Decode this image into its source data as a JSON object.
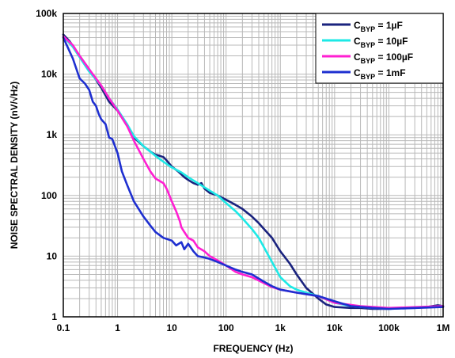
{
  "chart_data": {
    "type": "line",
    "title": "",
    "xlabel": "FREQUENCY (Hz)",
    "ylabel": "NOISE SPECTRAL DENSITY (nV/√Hz)",
    "x_scale": "log",
    "y_scale": "log",
    "xlim": [
      0.1,
      1000000
    ],
    "ylim": [
      1,
      100000
    ],
    "grid": true,
    "legend_position": "top-right",
    "x_tick_labels": [
      {
        "value": 0.1,
        "label": "0.1"
      },
      {
        "value": 1,
        "label": "1"
      },
      {
        "value": 10,
        "label": "10"
      },
      {
        "value": 100,
        "label": "100"
      },
      {
        "value": 1000,
        "label": "1k"
      },
      {
        "value": 10000,
        "label": "10k"
      },
      {
        "value": 100000,
        "label": "100k"
      },
      {
        "value": 1000000,
        "label": "1M"
      }
    ],
    "y_tick_labels": [
      {
        "value": 1,
        "label": "1"
      },
      {
        "value": 10,
        "label": "10"
      },
      {
        "value": 100,
        "label": "100"
      },
      {
        "value": 1000,
        "label": "1k"
      },
      {
        "value": 10000,
        "label": "10k"
      },
      {
        "value": 100000,
        "label": "100k"
      }
    ],
    "series": [
      {
        "name_main": "C",
        "name_sub": "BYP",
        "name_rest": " = 1µF",
        "color": "#1a237e",
        "points": [
          [
            0.1,
            45000
          ],
          [
            0.13,
            35000
          ],
          [
            0.2,
            20000
          ],
          [
            0.3,
            12000
          ],
          [
            0.5,
            6000
          ],
          [
            0.7,
            3500
          ],
          [
            1,
            2500
          ],
          [
            1.5,
            1400
          ],
          [
            2,
            900
          ],
          [
            3,
            650
          ],
          [
            4,
            530
          ],
          [
            5,
            470
          ],
          [
            6,
            450
          ],
          [
            7,
            430
          ],
          [
            8,
            380
          ],
          [
            10,
            300
          ],
          [
            13,
            250
          ],
          [
            17,
            200
          ],
          [
            20,
            180
          ],
          [
            25,
            160
          ],
          [
            30,
            150
          ],
          [
            35,
            160
          ],
          [
            40,
            130
          ],
          [
            50,
            110
          ],
          [
            60,
            105
          ],
          [
            70,
            100
          ],
          [
            100,
            85
          ],
          [
            150,
            70
          ],
          [
            200,
            60
          ],
          [
            300,
            45
          ],
          [
            400,
            35
          ],
          [
            500,
            28
          ],
          [
            700,
            20
          ],
          [
            1000,
            12
          ],
          [
            1500,
            7.5
          ],
          [
            2000,
            5
          ],
          [
            3000,
            3
          ],
          [
            5000,
            2
          ],
          [
            7000,
            1.6
          ],
          [
            10000,
            1.45
          ],
          [
            20000,
            1.4
          ],
          [
            30000,
            1.4
          ],
          [
            50000,
            1.35
          ],
          [
            100000,
            1.35
          ],
          [
            200000,
            1.4
          ],
          [
            500000,
            1.45
          ],
          [
            800000,
            1.55
          ],
          [
            1000000,
            1.5
          ]
        ]
      },
      {
        "name_main": "C",
        "name_sub": "BYP",
        "name_rest": " = 10µF",
        "color": "#1de9e6",
        "points": [
          [
            0.1,
            42000
          ],
          [
            0.15,
            28000
          ],
          [
            0.2,
            19000
          ],
          [
            0.3,
            11000
          ],
          [
            0.5,
            6500
          ],
          [
            0.7,
            4000
          ],
          [
            1,
            2600
          ],
          [
            1.5,
            1500
          ],
          [
            2,
            950
          ],
          [
            3,
            650
          ],
          [
            5,
            450
          ],
          [
            7,
            360
          ],
          [
            10,
            290
          ],
          [
            15,
            240
          ],
          [
            20,
            200
          ],
          [
            30,
            160
          ],
          [
            50,
            120
          ],
          [
            70,
            100
          ],
          [
            100,
            75
          ],
          [
            150,
            55
          ],
          [
            200,
            42
          ],
          [
            300,
            28
          ],
          [
            400,
            20
          ],
          [
            500,
            14
          ],
          [
            700,
            8
          ],
          [
            1000,
            4.5
          ],
          [
            1500,
            3.2
          ],
          [
            2000,
            2.8
          ],
          [
            3000,
            2.5
          ],
          [
            5000,
            2.2
          ],
          [
            10000,
            1.7
          ],
          [
            20000,
            1.5
          ],
          [
            50000,
            1.4
          ],
          [
            100000,
            1.35
          ],
          [
            300000,
            1.4
          ],
          [
            1000000,
            1.5
          ]
        ]
      },
      {
        "name_main": "C",
        "name_sub": "BYP",
        "name_rest": " = 100µF",
        "color": "#ff1fd2",
        "points": [
          [
            0.1,
            42000
          ],
          [
            0.15,
            30000
          ],
          [
            0.2,
            20000
          ],
          [
            0.3,
            12000
          ],
          [
            0.5,
            6500
          ],
          [
            0.7,
            4000
          ],
          [
            1,
            2500
          ],
          [
            1.5,
            1400
          ],
          [
            2,
            800
          ],
          [
            3,
            400
          ],
          [
            4,
            250
          ],
          [
            5,
            190
          ],
          [
            7,
            160
          ],
          [
            8,
            130
          ],
          [
            10,
            80
          ],
          [
            12,
            55
          ],
          [
            14,
            38
          ],
          [
            15,
            30
          ],
          [
            17,
            25
          ],
          [
            20,
            20
          ],
          [
            25,
            18
          ],
          [
            30,
            14
          ],
          [
            40,
            12
          ],
          [
            50,
            10
          ],
          [
            70,
            8.5
          ],
          [
            100,
            7
          ],
          [
            150,
            5.5
          ],
          [
            200,
            5
          ],
          [
            300,
            4.5
          ],
          [
            500,
            3.6
          ],
          [
            700,
            3.1
          ],
          [
            1000,
            2.8
          ],
          [
            2000,
            2.5
          ],
          [
            5000,
            2.2
          ],
          [
            10000,
            1.7
          ],
          [
            30000,
            1.5
          ],
          [
            100000,
            1.4
          ],
          [
            1000000,
            1.5
          ]
        ]
      },
      {
        "name_main": "C",
        "name_sub": "BYP",
        "name_rest": " = 1mF",
        "color": "#1e2fd0",
        "points": [
          [
            0.1,
            40000
          ],
          [
            0.12,
            28000
          ],
          [
            0.15,
            18000
          ],
          [
            0.2,
            8500
          ],
          [
            0.25,
            7000
          ],
          [
            0.3,
            5500
          ],
          [
            0.35,
            3500
          ],
          [
            0.4,
            3000
          ],
          [
            0.45,
            2200
          ],
          [
            0.5,
            1800
          ],
          [
            0.6,
            1500
          ],
          [
            0.7,
            900
          ],
          [
            0.8,
            850
          ],
          [
            1,
            500
          ],
          [
            1.2,
            250
          ],
          [
            1.5,
            150
          ],
          [
            2,
            80
          ],
          [
            3,
            45
          ],
          [
            4,
            32
          ],
          [
            5,
            25
          ],
          [
            7,
            20
          ],
          [
            10,
            18
          ],
          [
            12,
            15
          ],
          [
            15,
            17
          ],
          [
            17,
            13
          ],
          [
            20,
            16
          ],
          [
            25,
            12
          ],
          [
            30,
            10
          ],
          [
            40,
            9.5
          ],
          [
            50,
            9
          ],
          [
            70,
            8
          ],
          [
            100,
            7
          ],
          [
            150,
            6
          ],
          [
            200,
            5.5
          ],
          [
            300,
            5
          ],
          [
            500,
            3.8
          ],
          [
            700,
            3.2
          ],
          [
            1000,
            2.8
          ],
          [
            2000,
            2.5
          ],
          [
            5000,
            2.2
          ],
          [
            10000,
            1.8
          ],
          [
            20000,
            1.5
          ],
          [
            50000,
            1.4
          ],
          [
            100000,
            1.35
          ],
          [
            1000000,
            1.45
          ]
        ]
      }
    ]
  }
}
